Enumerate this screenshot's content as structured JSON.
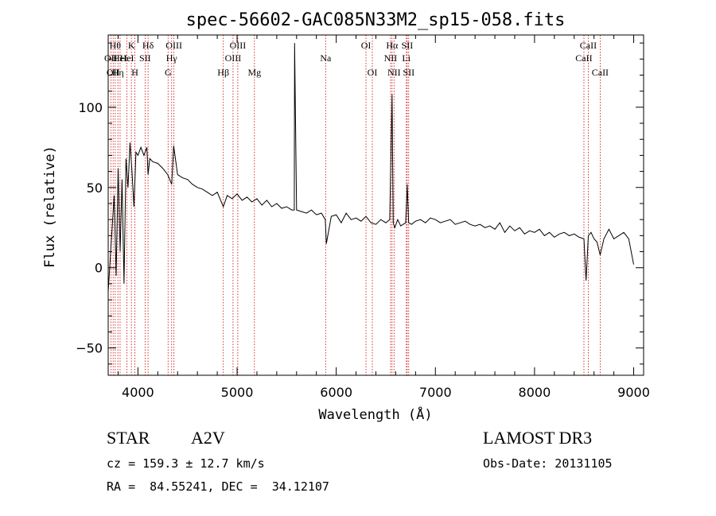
{
  "chart_data": {
    "type": "line",
    "title": "spec-56602-GAC085N33M2_sp15-058.fits",
    "xlabel": "Wavelength (Å)",
    "ylabel": "Flux (relative)",
    "xlim": [
      3700,
      9100
    ],
    "ylim": [
      -67,
      145
    ],
    "x_ticks": [
      4000,
      5000,
      6000,
      7000,
      8000,
      9000
    ],
    "y_ticks": [
      -50,
      0,
      50,
      100
    ],
    "x_tick_labels": [
      "4000",
      "5000",
      "6000",
      "7000",
      "8000",
      "9000"
    ],
    "y_tick_labels": [
      "−50",
      "0",
      "50",
      "100"
    ],
    "spectrum": {
      "x": [
        3700,
        3730,
        3760,
        3780,
        3800,
        3820,
        3840,
        3860,
        3880,
        3900,
        3920,
        3940,
        3960,
        3980,
        4000,
        4030,
        4060,
        4090,
        4102,
        4120,
        4150,
        4200,
        4250,
        4300,
        4340,
        4360,
        4400,
        4450,
        4500,
        4550,
        4600,
        4650,
        4700,
        4750,
        4800,
        4861,
        4900,
        4950,
        5000,
        5050,
        5100,
        5150,
        5200,
        5250,
        5300,
        5350,
        5400,
        5450,
        5500,
        5550,
        5577,
        5580,
        5600,
        5650,
        5700,
        5750,
        5800,
        5850,
        5890,
        5900,
        5950,
        6000,
        6050,
        6100,
        6150,
        6200,
        6250,
        6300,
        6350,
        6400,
        6450,
        6500,
        6540,
        6563,
        6575,
        6590,
        6620,
        6650,
        6700,
        6716,
        6730,
        6760,
        6800,
        6850,
        6900,
        6950,
        7000,
        7050,
        7100,
        7150,
        7200,
        7250,
        7300,
        7350,
        7400,
        7450,
        7500,
        7550,
        7600,
        7650,
        7700,
        7750,
        7800,
        7850,
        7900,
        7950,
        8000,
        8050,
        8100,
        8150,
        8200,
        8250,
        8300,
        8350,
        8400,
        8450,
        8498,
        8520,
        8542,
        8570,
        8600,
        8630,
        8662,
        8700,
        8750,
        8800,
        8850,
        8900,
        8950,
        9000
      ],
      "y": [
        -15,
        15,
        45,
        -5,
        62,
        10,
        55,
        -10,
        68,
        50,
        78,
        60,
        38,
        72,
        70,
        75,
        70,
        75,
        58,
        68,
        66,
        65,
        62,
        58,
        52,
        76,
        58,
        56,
        55,
        52,
        50,
        49,
        47,
        45,
        47,
        38,
        45,
        43,
        46,
        42,
        44,
        41,
        43,
        39,
        42,
        38,
        40,
        37,
        38,
        36,
        36,
        140,
        36,
        35,
        34,
        36,
        33,
        34,
        30,
        15,
        32,
        33,
        28,
        34,
        30,
        31,
        29,
        32,
        28,
        27,
        30,
        28,
        30,
        108,
        28,
        25,
        30,
        26,
        28,
        52,
        28,
        27,
        29,
        30,
        28,
        31,
        30,
        28,
        29,
        30,
        27,
        28,
        29,
        27,
        26,
        27,
        25,
        26,
        24,
        28,
        22,
        26,
        23,
        25,
        21,
        23,
        22,
        24,
        20,
        22,
        19,
        21,
        22,
        20,
        21,
        19,
        18,
        -8,
        20,
        22,
        18,
        16,
        8,
        18,
        24,
        18,
        20,
        22,
        18,
        2
      ]
    },
    "spectral_lines": [
      {
        "wl": 3727,
        "label": "OII",
        "row": 2
      },
      {
        "wl": 3750,
        "label": "OII",
        "row": 3
      },
      {
        "wl": 3771,
        "label": "Hθ",
        "row": 1
      },
      {
        "wl": 3798,
        "label": "Hη",
        "row": 3
      },
      {
        "wl": 3820,
        "label": "HeI",
        "row": 2
      },
      {
        "wl": 3889,
        "label": "HeI",
        "row": 2
      },
      {
        "wl": 3934,
        "label": "K",
        "row": 1
      },
      {
        "wl": 3969,
        "label": "H",
        "row": 3
      },
      {
        "wl": 4072,
        "label": "SII",
        "row": 2
      },
      {
        "wl": 4102,
        "label": "Hδ",
        "row": 1
      },
      {
        "wl": 4304,
        "label": "G",
        "row": 3
      },
      {
        "wl": 4340,
        "label": "Hγ",
        "row": 2
      },
      {
        "wl": 4363,
        "label": "OIII",
        "row": 1
      },
      {
        "wl": 4861,
        "label": "Hβ",
        "row": 3
      },
      {
        "wl": 4959,
        "label": "OIII",
        "row": 2
      },
      {
        "wl": 5007,
        "label": "OIII",
        "row": 1
      },
      {
        "wl": 5175,
        "label": "Mg",
        "row": 3
      },
      {
        "wl": 5893,
        "label": "Na",
        "row": 2
      },
      {
        "wl": 6300,
        "label": "OI",
        "row": 1
      },
      {
        "wl": 6364,
        "label": "OI",
        "row": 3
      },
      {
        "wl": 6548,
        "label": "NII",
        "row": 2
      },
      {
        "wl": 6563,
        "label": "Hα",
        "row": 1
      },
      {
        "wl": 6583,
        "label": "NII",
        "row": 3
      },
      {
        "wl": 6707,
        "label": "Li",
        "row": 2
      },
      {
        "wl": 6716,
        "label": "SII",
        "row": 1
      },
      {
        "wl": 6731,
        "label": "SII",
        "row": 3
      },
      {
        "wl": 8498,
        "label": "CaII",
        "row": 2
      },
      {
        "wl": 8542,
        "label": "CaII",
        "row": 1
      },
      {
        "wl": 8662,
        "label": "CaII",
        "row": 3
      }
    ],
    "line_color": "#cc0000"
  },
  "info": {
    "object_class": "STAR",
    "subclass": "A2V",
    "survey": "LAMOST DR3",
    "cz": "cz = 159.3 ± 12.7 km/s",
    "obs_date": "Obs-Date: 20131105",
    "coords": "RA =  84.55241, DEC =  34.12107"
  }
}
